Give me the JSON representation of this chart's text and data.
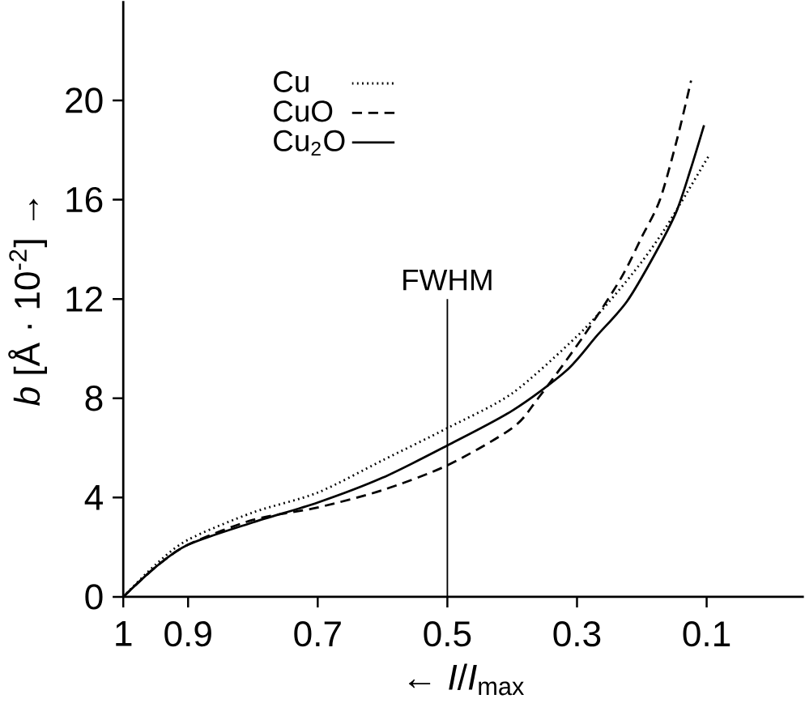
{
  "chart_data": {
    "type": "line",
    "xlabel": "← *I*/*I*$_{max}$",
    "ylabel": "*b* [Å · 10$^{-2}$] →",
    "xlim": [
      1,
      -0.05
    ],
    "xticks": [
      1,
      0.9,
      0.7,
      0.5,
      0.3,
      0.1
    ],
    "ylim": [
      0,
      24
    ],
    "yticks": [
      0,
      4,
      8,
      12,
      16,
      20
    ],
    "legend": "top left",
    "grid": false,
    "ref_lines": [
      {
        "axis": "x",
        "value": 0.5,
        "label": "FWHM"
      }
    ],
    "series": [
      {
        "name": "Cu",
        "color": "#000000",
        "line_style": "dotted",
        "x": [
          1,
          0.95,
          0.9,
          0.8,
          0.7,
          0.6,
          0.5,
          0.4,
          0.3,
          0.25,
          0.2,
          0.165,
          0.13,
          0.096
        ],
        "values": [
          0,
          1.3,
          2.3,
          3.4,
          4.2,
          5.5,
          6.8,
          8.2,
          10.5,
          11.9,
          13.5,
          14.8,
          16.3,
          17.8
        ]
      },
      {
        "name": "CuO",
        "color": "#000000",
        "line_style": "dashed",
        "x": [
          1,
          0.95,
          0.9,
          0.8,
          0.7,
          0.6,
          0.5,
          0.4,
          0.36,
          0.29,
          0.233,
          0.2,
          0.172,
          0.145,
          0.124
        ],
        "values": [
          0,
          1.2,
          2.1,
          3.1,
          3.6,
          4.3,
          5.3,
          6.8,
          8.0,
          10.5,
          12.8,
          14.5,
          16.0,
          18.5,
          20.8
        ]
      },
      {
        "name": "Cu$_{2}$O",
        "color": "#000000",
        "line_style": "solid",
        "x": [
          1,
          0.95,
          0.9,
          0.8,
          0.7,
          0.6,
          0.5,
          0.4,
          0.317,
          0.27,
          0.223,
          0.18,
          0.147,
          0.125,
          0.104
        ],
        "values": [
          0,
          1.2,
          2.1,
          3.0,
          3.8,
          4.8,
          6.1,
          7.5,
          9.1,
          10.5,
          11.9,
          13.8,
          15.5,
          17.2,
          19.0
        ]
      }
    ]
  }
}
